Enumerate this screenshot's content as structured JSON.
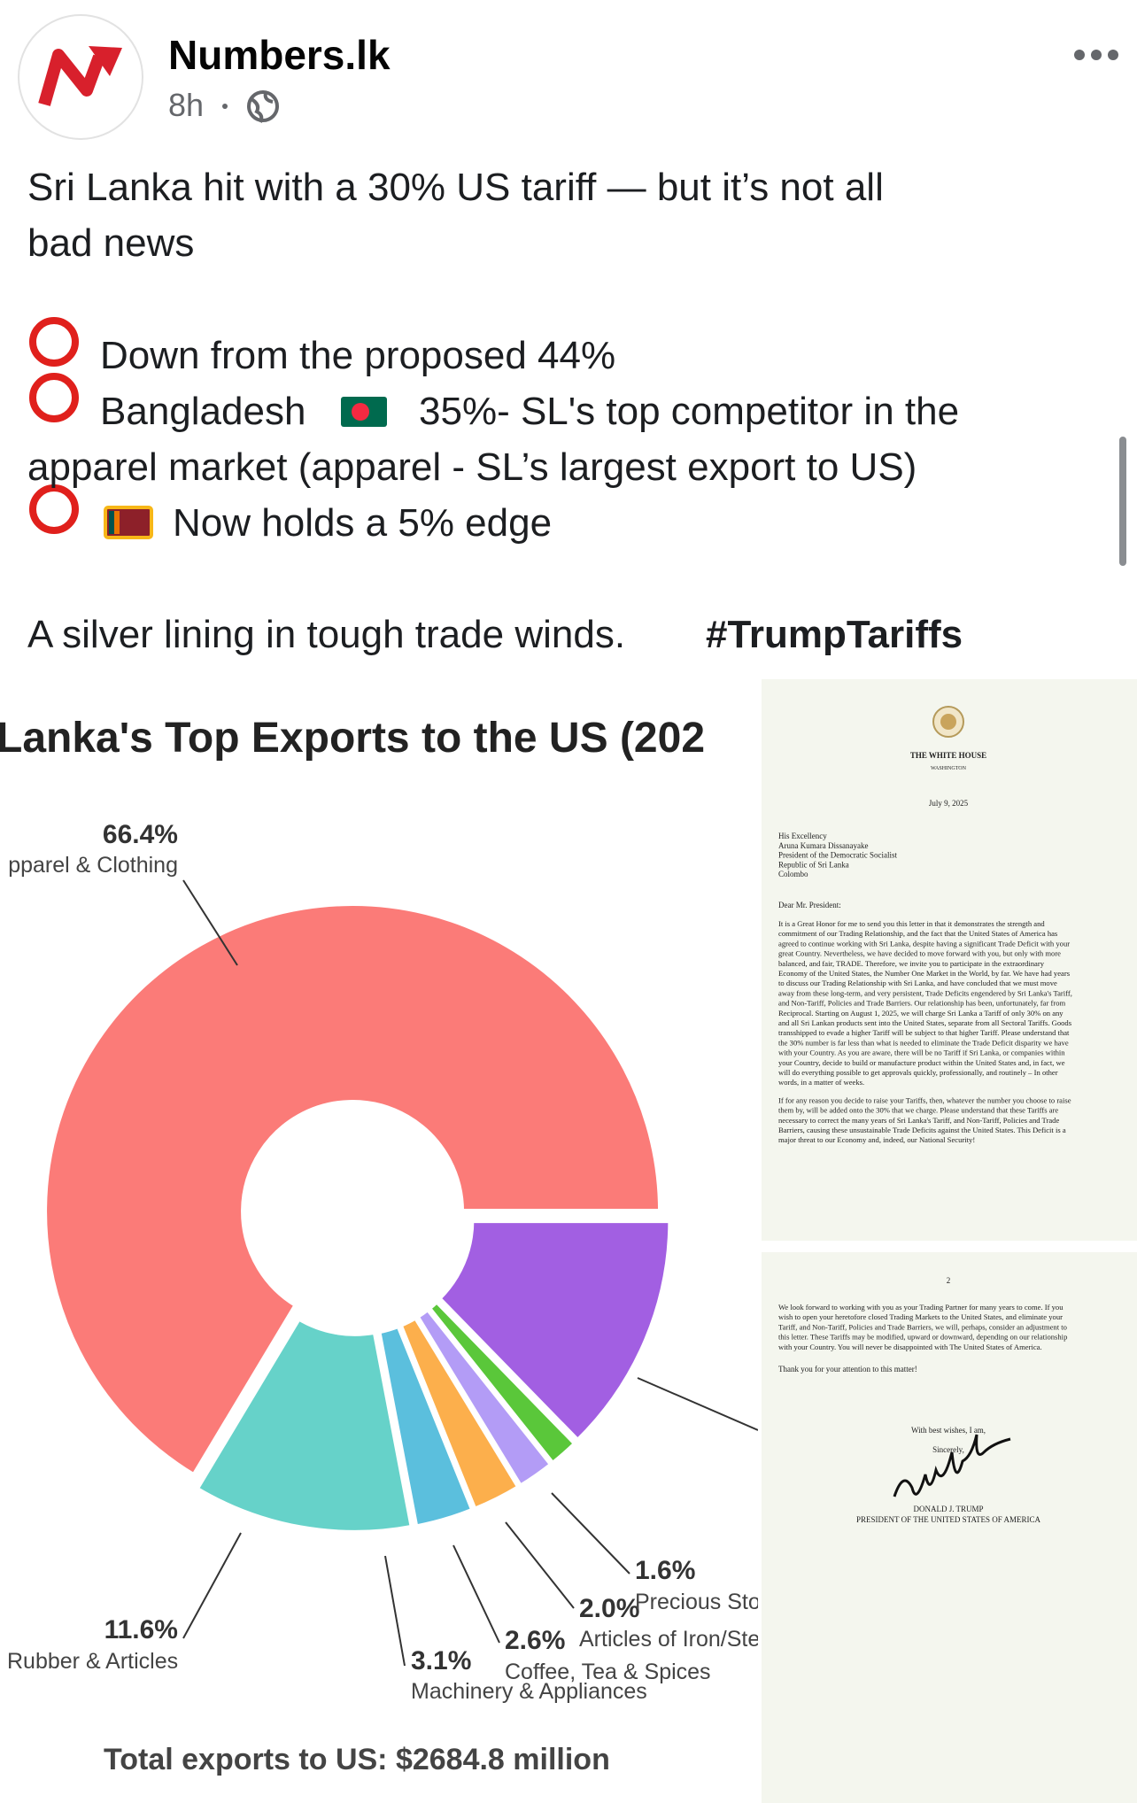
{
  "post": {
    "author": "Numbers.lk",
    "time": "8h",
    "headline": [
      "Sri Lanka hit with a 30% US tariff — but it’s not all",
      "bad news"
    ],
    "bullets": [
      [
        "Down from the proposed 44%"
      ],
      [
        "Bangladesh",
        "35%- SL's top competitor in the"
      ],
      [
        "Now holds a 5% edge"
      ]
    ],
    "continuation": "apparel market (apparel - SL’s largest export to US)",
    "closing": "A silver lining in tough trade winds.",
    "hashtag": "#TrumpTariffs"
  },
  "chart_data": {
    "type": "pie",
    "donut": true,
    "title": "Lanka's Top Exports to the US (202",
    "categories": [
      "pparel & Clothing",
      "Rubber & Articles",
      "Machinery & Appliances",
      "Coffee, Tea & Spices",
      "Articles of Iron/Ste",
      "Precious Sto",
      null
    ],
    "values": [
      66.4,
      11.6,
      3.1,
      2.6,
      2.0,
      1.6,
      12.7
    ],
    "value_labels": [
      "66.4%",
      "11.6%",
      "3.1%",
      "2.6%",
      "2.0%",
      "1.6%",
      null
    ],
    "colors": [
      "#fb7b78",
      "#66d2c9",
      "#5bbfdd",
      "#fcaf4c",
      "#b39cf6",
      "#5ac73a",
      "#a25fe2"
    ],
    "footer": "Total exports to US: $2684.8 million"
  },
  "letter": {
    "page1": {
      "org": "THE WHITE HOUSE",
      "city": "WASHINGTON",
      "date": "July 9, 2025",
      "address": [
        "His Excellency",
        "Aruna Kumara Dissanayake",
        "President of the Democratic Socialist",
        "  Republic of Sri Lanka",
        "Colombo"
      ],
      "salutation": "Dear Mr. President:",
      "paragraphs": [
        [
          "It is a Great Honor for me to send you this letter in that it demonstrates the strength and",
          "commitment of our Trading Relationship, and the fact that the United States of America has",
          "agreed to continue working with Sri Lanka, despite having a significant Trade Deficit with your",
          "great Country. Nevertheless, we have decided to move forward with you, but only with more",
          "balanced, and fair, TRADE. Therefore, we invite you to participate in the extraordinary",
          "Economy of the United States, the Number One Market in the World, by far. We have had years",
          "to discuss our Trading Relationship with Sri Lanka, and have concluded that we must move",
          "away from these long-term, and very persistent, Trade Deficits engendered by Sri Lanka's Tariff,",
          "and Non-Tariff, Policies and Trade Barriers. Our relationship has been, unfortunately, far from",
          "Reciprocal. Starting on August 1, 2025, we will charge Sri Lanka a Tariff of only 30% on any",
          "and all Sri Lankan products sent into the United States, separate from all Sectoral Tariffs. Goods",
          "transshipped to evade a higher Tariff will be subject to that higher Tariff. Please understand that",
          "the 30% number is far less than what is needed to eliminate the Trade Deficit disparity we have",
          "with your Country. As you are aware, there will be no Tariff if Sri Lanka, or companies within",
          "your Country, decide to build or manufacture product within the United States and, in fact, we",
          "will do everything possible to get approvals quickly, professionally, and routinely – In other",
          "words, in a matter of weeks."
        ],
        [
          "If for any reason you decide to raise your Tariffs, then, whatever the number you choose to raise",
          "them by, will be added onto the 30% that we charge. Please understand that these Tariffs are",
          "necessary to correct the many years of Sri Lanka's Tariff, and Non-Tariff, Policies and Trade",
          "Barriers, causing these unsustainable Trade Deficits against the United States. This Deficit is a",
          "major threat to our Economy and, indeed, our National Security!"
        ]
      ]
    },
    "page2": {
      "number": "2",
      "paragraph": [
        "We look forward to working with you as your Trading Partner for many years to come. If you",
        "wish to open your heretofore closed Trading Markets to the United States, and eliminate your",
        "Tariff, and Non-Tariff, Policies and Trade Barriers, we will, perhaps, consider an adjustment to",
        "this letter. These Tariffs may be modified, upward or downward, depending on our relationship",
        "with your Country. You will never be disappointed with The United States of America."
      ],
      "thanks": "Thank you for your attention to this matter!",
      "regards": "With best wishes, I am,",
      "sign_off": "Sincerely,",
      "signer": "DONALD J. TRUMP",
      "signer_title": "PRESIDENT OF THE UNITED STATES OF AMERICA"
    }
  }
}
